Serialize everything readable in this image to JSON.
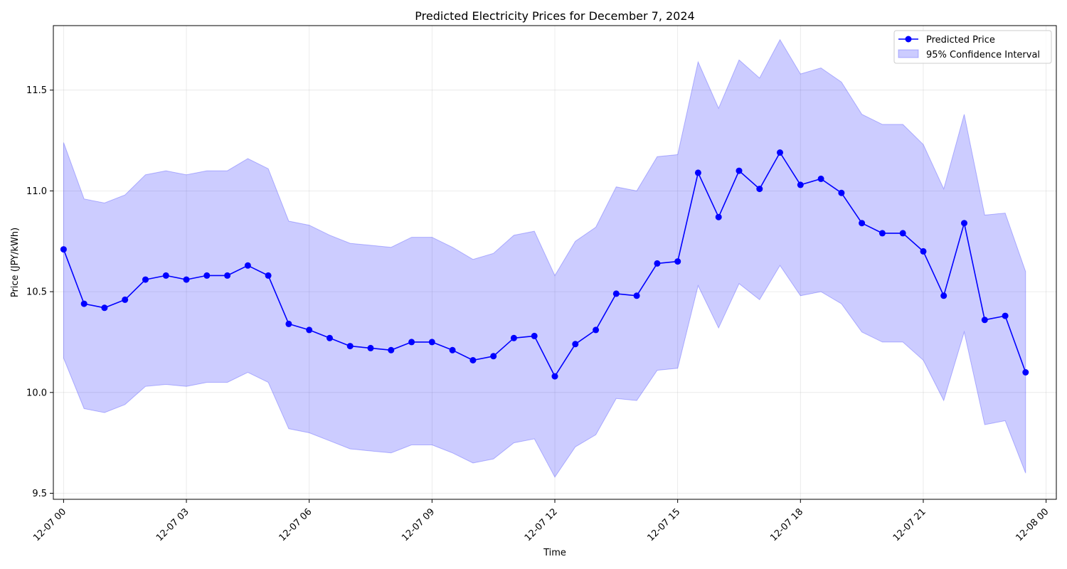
{
  "chart_data": {
    "type": "line",
    "title": "Predicted Electricity Prices for December 7, 2024",
    "xlabel": "Time",
    "ylabel": "Price (JPY/kWh)",
    "x_unit": "hour of 2024-12-07",
    "xlim": [
      -0.25,
      24.25
    ],
    "ylim": [
      9.47,
      11.82
    ],
    "x_ticks": [
      {
        "value": 0,
        "label": "12-07 00"
      },
      {
        "value": 3,
        "label": "12-07 03"
      },
      {
        "value": 6,
        "label": "12-07 06"
      },
      {
        "value": 9,
        "label": "12-07 09"
      },
      {
        "value": 12,
        "label": "12-07 12"
      },
      {
        "value": 15,
        "label": "12-07 15"
      },
      {
        "value": 18,
        "label": "12-07 18"
      },
      {
        "value": 21,
        "label": "12-07 21"
      },
      {
        "value": 24,
        "label": "12-08 00"
      }
    ],
    "y_ticks": [
      {
        "value": 9.5,
        "label": "9.5"
      },
      {
        "value": 10.0,
        "label": "10.0"
      },
      {
        "value": 10.5,
        "label": "10.5"
      },
      {
        "value": 11.0,
        "label": "11.0"
      },
      {
        "value": 11.5,
        "label": "11.5"
      }
    ],
    "grid": true,
    "legend_position": "top-right",
    "x": [
      0,
      0.5,
      1,
      1.5,
      2,
      2.5,
      3,
      3.5,
      4,
      4.5,
      5,
      5.5,
      6,
      6.5,
      7,
      7.5,
      8,
      8.5,
      9,
      9.5,
      10,
      10.5,
      11,
      11.5,
      12,
      12.5,
      13,
      13.5,
      14,
      14.5,
      15,
      15.5,
      16,
      16.5,
      17,
      17.5,
      18,
      18.5,
      19,
      19.5,
      20,
      20.5,
      21,
      21.5,
      22,
      22.5,
      23,
      23.5
    ],
    "series": [
      {
        "name": "Predicted Price",
        "color": "#0000ff",
        "values": [
          10.71,
          10.44,
          10.42,
          10.46,
          10.56,
          10.58,
          10.56,
          10.58,
          10.58,
          10.63,
          10.58,
          10.34,
          10.31,
          10.27,
          10.23,
          10.22,
          10.21,
          10.25,
          10.25,
          10.21,
          10.16,
          10.18,
          10.27,
          10.28,
          10.08,
          10.24,
          10.31,
          10.49,
          10.48,
          10.64,
          10.65,
          11.09,
          10.87,
          11.1,
          11.01,
          11.19,
          11.03,
          11.06,
          10.99,
          10.84,
          10.79,
          10.79,
          10.7,
          10.48,
          10.84,
          10.36,
          10.38,
          10.1
        ]
      }
    ],
    "confidence_interval": {
      "name": "95% Confidence Interval",
      "color": "#0000ff",
      "opacity": 0.2,
      "upper": [
        11.24,
        10.96,
        10.94,
        10.98,
        11.08,
        11.1,
        11.08,
        11.1,
        11.1,
        11.16,
        11.11,
        10.85,
        10.83,
        10.78,
        10.74,
        10.73,
        10.72,
        10.77,
        10.77,
        10.72,
        10.66,
        10.69,
        10.78,
        10.8,
        10.58,
        10.75,
        10.82,
        11.02,
        11.0,
        11.17,
        11.18,
        11.64,
        11.41,
        11.65,
        11.56,
        11.75,
        11.58,
        11.61,
        11.54,
        11.38,
        11.33,
        11.33,
        11.23,
        11.01,
        11.38,
        10.88,
        10.89,
        10.6
      ],
      "lower": [
        10.17,
        9.92,
        9.9,
        9.94,
        10.03,
        10.04,
        10.03,
        10.05,
        10.05,
        10.1,
        10.05,
        9.82,
        9.8,
        9.76,
        9.72,
        9.71,
        9.7,
        9.74,
        9.74,
        9.7,
        9.65,
        9.67,
        9.75,
        9.77,
        9.58,
        9.73,
        9.79,
        9.97,
        9.96,
        10.11,
        10.12,
        10.53,
        10.32,
        10.54,
        10.46,
        10.63,
        10.48,
        10.5,
        10.44,
        10.3,
        10.25,
        10.25,
        10.16,
        9.96,
        10.3,
        9.84,
        9.86,
        9.6
      ]
    }
  }
}
